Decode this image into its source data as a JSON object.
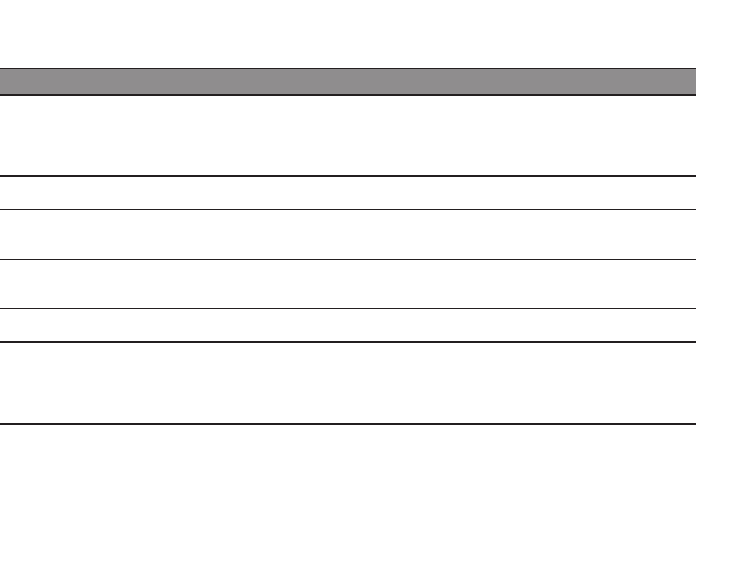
{
  "colors": {
    "header_fill": "#8f8d8e",
    "rule": "#231f20",
    "background": "#ffffff"
  },
  "table": {
    "header": [],
    "rows": []
  }
}
